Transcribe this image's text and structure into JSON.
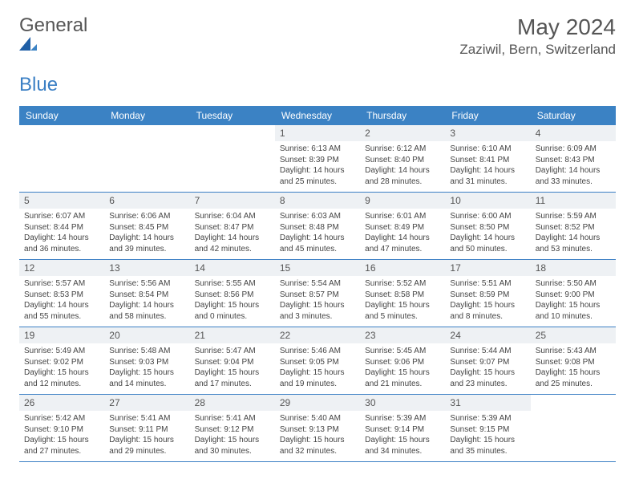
{
  "brand": {
    "text_general": "General",
    "text_blue": "Blue"
  },
  "header": {
    "month_title": "May 2024",
    "location": "Zaziwil, Bern, Switzerland"
  },
  "colors": {
    "header_bg": "#3b82c4",
    "daynum_bg": "#eef1f4",
    "rule": "#3b7fc4",
    "text": "#555555",
    "logo_blue": "#3b7fc4"
  },
  "weekdays": [
    "Sunday",
    "Monday",
    "Tuesday",
    "Wednesday",
    "Thursday",
    "Friday",
    "Saturday"
  ],
  "weeks": [
    [
      {
        "empty": true
      },
      {
        "empty": true
      },
      {
        "empty": true
      },
      {
        "num": "1",
        "sunrise": "Sunrise: 6:13 AM",
        "sunset": "Sunset: 8:39 PM",
        "day1": "Daylight: 14 hours",
        "day2": "and 25 minutes."
      },
      {
        "num": "2",
        "sunrise": "Sunrise: 6:12 AM",
        "sunset": "Sunset: 8:40 PM",
        "day1": "Daylight: 14 hours",
        "day2": "and 28 minutes."
      },
      {
        "num": "3",
        "sunrise": "Sunrise: 6:10 AM",
        "sunset": "Sunset: 8:41 PM",
        "day1": "Daylight: 14 hours",
        "day2": "and 31 minutes."
      },
      {
        "num": "4",
        "sunrise": "Sunrise: 6:09 AM",
        "sunset": "Sunset: 8:43 PM",
        "day1": "Daylight: 14 hours",
        "day2": "and 33 minutes."
      }
    ],
    [
      {
        "num": "5",
        "sunrise": "Sunrise: 6:07 AM",
        "sunset": "Sunset: 8:44 PM",
        "day1": "Daylight: 14 hours",
        "day2": "and 36 minutes."
      },
      {
        "num": "6",
        "sunrise": "Sunrise: 6:06 AM",
        "sunset": "Sunset: 8:45 PM",
        "day1": "Daylight: 14 hours",
        "day2": "and 39 minutes."
      },
      {
        "num": "7",
        "sunrise": "Sunrise: 6:04 AM",
        "sunset": "Sunset: 8:47 PM",
        "day1": "Daylight: 14 hours",
        "day2": "and 42 minutes."
      },
      {
        "num": "8",
        "sunrise": "Sunrise: 6:03 AM",
        "sunset": "Sunset: 8:48 PM",
        "day1": "Daylight: 14 hours",
        "day2": "and 45 minutes."
      },
      {
        "num": "9",
        "sunrise": "Sunrise: 6:01 AM",
        "sunset": "Sunset: 8:49 PM",
        "day1": "Daylight: 14 hours",
        "day2": "and 47 minutes."
      },
      {
        "num": "10",
        "sunrise": "Sunrise: 6:00 AM",
        "sunset": "Sunset: 8:50 PM",
        "day1": "Daylight: 14 hours",
        "day2": "and 50 minutes."
      },
      {
        "num": "11",
        "sunrise": "Sunrise: 5:59 AM",
        "sunset": "Sunset: 8:52 PM",
        "day1": "Daylight: 14 hours",
        "day2": "and 53 minutes."
      }
    ],
    [
      {
        "num": "12",
        "sunrise": "Sunrise: 5:57 AM",
        "sunset": "Sunset: 8:53 PM",
        "day1": "Daylight: 14 hours",
        "day2": "and 55 minutes."
      },
      {
        "num": "13",
        "sunrise": "Sunrise: 5:56 AM",
        "sunset": "Sunset: 8:54 PM",
        "day1": "Daylight: 14 hours",
        "day2": "and 58 minutes."
      },
      {
        "num": "14",
        "sunrise": "Sunrise: 5:55 AM",
        "sunset": "Sunset: 8:56 PM",
        "day1": "Daylight: 15 hours",
        "day2": "and 0 minutes."
      },
      {
        "num": "15",
        "sunrise": "Sunrise: 5:54 AM",
        "sunset": "Sunset: 8:57 PM",
        "day1": "Daylight: 15 hours",
        "day2": "and 3 minutes."
      },
      {
        "num": "16",
        "sunrise": "Sunrise: 5:52 AM",
        "sunset": "Sunset: 8:58 PM",
        "day1": "Daylight: 15 hours",
        "day2": "and 5 minutes."
      },
      {
        "num": "17",
        "sunrise": "Sunrise: 5:51 AM",
        "sunset": "Sunset: 8:59 PM",
        "day1": "Daylight: 15 hours",
        "day2": "and 8 minutes."
      },
      {
        "num": "18",
        "sunrise": "Sunrise: 5:50 AM",
        "sunset": "Sunset: 9:00 PM",
        "day1": "Daylight: 15 hours",
        "day2": "and 10 minutes."
      }
    ],
    [
      {
        "num": "19",
        "sunrise": "Sunrise: 5:49 AM",
        "sunset": "Sunset: 9:02 PM",
        "day1": "Daylight: 15 hours",
        "day2": "and 12 minutes."
      },
      {
        "num": "20",
        "sunrise": "Sunrise: 5:48 AM",
        "sunset": "Sunset: 9:03 PM",
        "day1": "Daylight: 15 hours",
        "day2": "and 14 minutes."
      },
      {
        "num": "21",
        "sunrise": "Sunrise: 5:47 AM",
        "sunset": "Sunset: 9:04 PM",
        "day1": "Daylight: 15 hours",
        "day2": "and 17 minutes."
      },
      {
        "num": "22",
        "sunrise": "Sunrise: 5:46 AM",
        "sunset": "Sunset: 9:05 PM",
        "day1": "Daylight: 15 hours",
        "day2": "and 19 minutes."
      },
      {
        "num": "23",
        "sunrise": "Sunrise: 5:45 AM",
        "sunset": "Sunset: 9:06 PM",
        "day1": "Daylight: 15 hours",
        "day2": "and 21 minutes."
      },
      {
        "num": "24",
        "sunrise": "Sunrise: 5:44 AM",
        "sunset": "Sunset: 9:07 PM",
        "day1": "Daylight: 15 hours",
        "day2": "and 23 minutes."
      },
      {
        "num": "25",
        "sunrise": "Sunrise: 5:43 AM",
        "sunset": "Sunset: 9:08 PM",
        "day1": "Daylight: 15 hours",
        "day2": "and 25 minutes."
      }
    ],
    [
      {
        "num": "26",
        "sunrise": "Sunrise: 5:42 AM",
        "sunset": "Sunset: 9:10 PM",
        "day1": "Daylight: 15 hours",
        "day2": "and 27 minutes."
      },
      {
        "num": "27",
        "sunrise": "Sunrise: 5:41 AM",
        "sunset": "Sunset: 9:11 PM",
        "day1": "Daylight: 15 hours",
        "day2": "and 29 minutes."
      },
      {
        "num": "28",
        "sunrise": "Sunrise: 5:41 AM",
        "sunset": "Sunset: 9:12 PM",
        "day1": "Daylight: 15 hours",
        "day2": "and 30 minutes."
      },
      {
        "num": "29",
        "sunrise": "Sunrise: 5:40 AM",
        "sunset": "Sunset: 9:13 PM",
        "day1": "Daylight: 15 hours",
        "day2": "and 32 minutes."
      },
      {
        "num": "30",
        "sunrise": "Sunrise: 5:39 AM",
        "sunset": "Sunset: 9:14 PM",
        "day1": "Daylight: 15 hours",
        "day2": "and 34 minutes."
      },
      {
        "num": "31",
        "sunrise": "Sunrise: 5:39 AM",
        "sunset": "Sunset: 9:15 PM",
        "day1": "Daylight: 15 hours",
        "day2": "and 35 minutes."
      },
      {
        "empty": true
      }
    ]
  ]
}
